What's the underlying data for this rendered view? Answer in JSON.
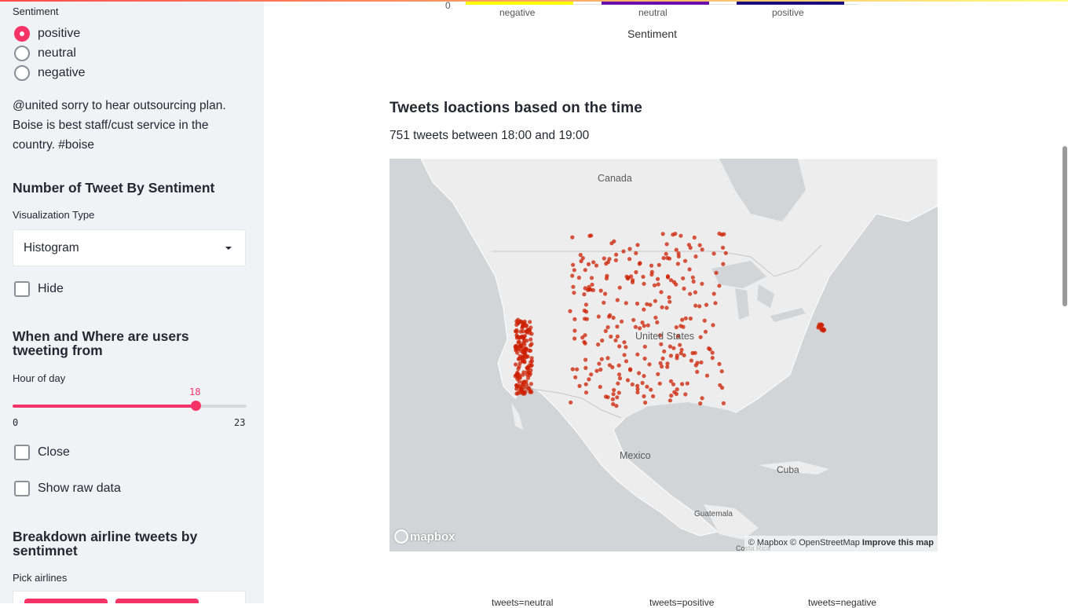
{
  "sidebar": {
    "sentiment_label": "Sentiment",
    "sentiment_options": [
      {
        "label": "positive",
        "selected": true
      },
      {
        "label": "neutral",
        "selected": false
      },
      {
        "label": "negative",
        "selected": false
      }
    ],
    "tweet_text": "@united sorry to hear outsourcing plan. Boise is best staff/cust service in the country. #boise",
    "section1_heading": "Number of Tweet By Sentiment",
    "viz_type_label": "Visualization Type",
    "viz_type_value": "Histogram",
    "hide_label": "Hide",
    "section2_heading": "When and Where are users tweeting from",
    "hour_label": "Hour of day",
    "hour_value": "18",
    "hour_min": "0",
    "hour_max": "23",
    "hour_fraction": 0.7826,
    "close_label": "Close",
    "raw_data_label": "Show raw data",
    "section3_heading": "Breakdown airline tweets by sentimnet",
    "pick_airlines_label": "Pick airlines"
  },
  "histogram": {
    "zero_tick": "0",
    "categories": [
      "negative",
      "neutral",
      "positive"
    ],
    "bar_colors": [
      "#ffff00",
      "#6a0dad",
      "#1a0b7c"
    ],
    "axis_title": "Sentiment"
  },
  "map_section": {
    "title": "Tweets loactions based on the time",
    "caption": "751 tweets between 18:00 and 19:00",
    "labels": {
      "canada": "Canada",
      "united_states": "United States",
      "mexico": "Mexico",
      "cuba": "Cuba",
      "guatemala": "Guatemala",
      "costa_rica": "Costa Rica"
    },
    "logo": "mapbox",
    "attribution": "© Mapbox © OpenStreetMap",
    "improve_link": "Improve this map",
    "point_color": "#cc1f00"
  },
  "bottom_facets": [
    "tweets=neutral",
    "tweets=positive",
    "tweets=negative"
  ]
}
